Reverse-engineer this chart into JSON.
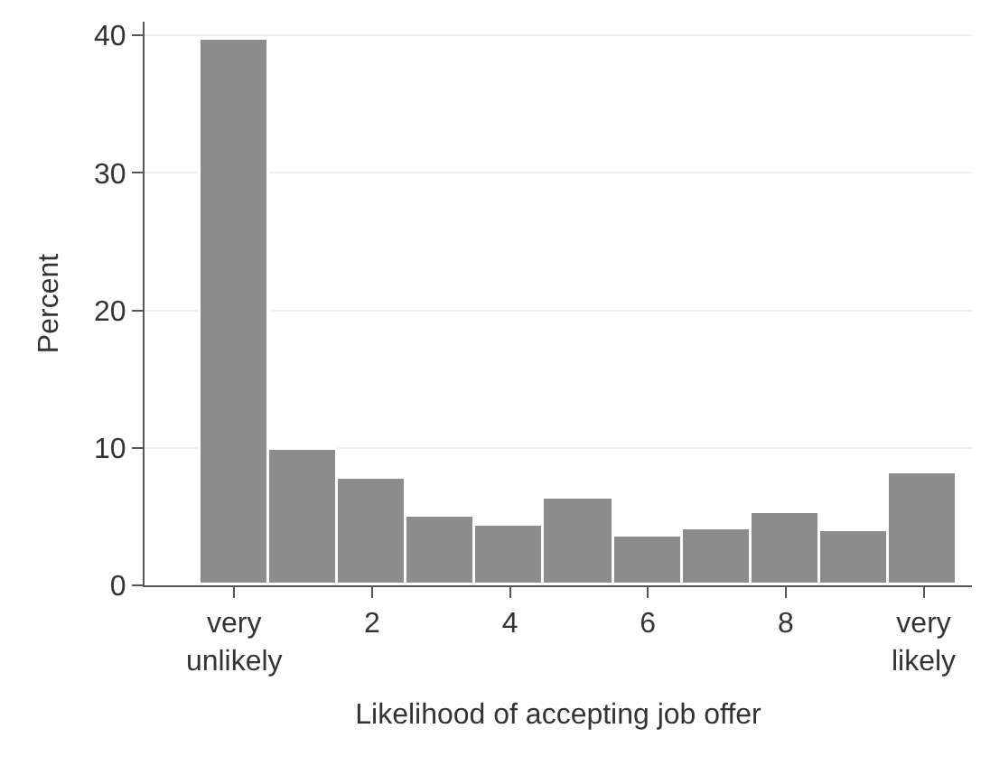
{
  "chart_data": {
    "type": "histogram",
    "xlabel": "Likelihood of accepting job offer",
    "ylabel": "Percent",
    "bins": [
      -0.5,
      0.5,
      1.5,
      2.5,
      3.5,
      4.5,
      5.5,
      6.5,
      7.5,
      8.5,
      9.5,
      10.5
    ],
    "values": [
      39.7,
      9.8,
      7.8,
      5.0,
      4.3,
      6.3,
      3.6,
      4.1,
      5.2,
      3.9,
      8.1
    ],
    "color": "#8c8c8c",
    "xlim": [
      -1.3,
      10.7
    ],
    "xticks": [
      {
        "value": 0,
        "label": "very\nunlikely"
      },
      2,
      4,
      6,
      8,
      {
        "value": 10,
        "label": "very\nlikely"
      }
    ],
    "ylim": [
      0,
      41
    ],
    "yticks": [
      0,
      10,
      20,
      30,
      40
    ],
    "grid": "y"
  }
}
